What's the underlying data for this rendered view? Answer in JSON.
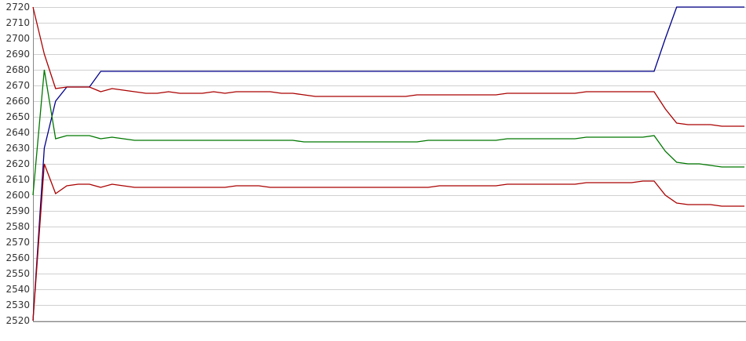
{
  "chart_data": {
    "type": "line",
    "categories": [
      null,
      null,
      null,
      null,
      null,
      null,
      null,
      null,
      null,
      null,
      null,
      null,
      null,
      null,
      null,
      null,
      null,
      null,
      null,
      null,
      null,
      null,
      null,
      null,
      null,
      null,
      null,
      null,
      null,
      null,
      null,
      null,
      null,
      null,
      null,
      null,
      null,
      null,
      null,
      null,
      null,
      null,
      null,
      null,
      null,
      null,
      null,
      null,
      null,
      null,
      null,
      null,
      null,
      null,
      null,
      null,
      null,
      null,
      null,
      null,
      null,
      null,
      null,
      null
    ],
    "ylim": [
      2520,
      2720
    ],
    "yticks": [
      2520,
      2530,
      2540,
      2550,
      2560,
      2570,
      2580,
      2590,
      2600,
      2610,
      2620,
      2630,
      2640,
      2650,
      2660,
      2670,
      2680,
      2690,
      2700,
      2710,
      2720
    ],
    "grid": true,
    "series": [
      {
        "color": "#00008b",
        "values": [
          2520,
          2630,
          2660,
          2669,
          2669,
          2669,
          2679,
          2679,
          2679,
          2679,
          2679,
          2679,
          2679,
          2679,
          2679,
          2679,
          2679,
          2679,
          2679,
          2679,
          2679,
          2679,
          2679,
          2679,
          2679,
          2679,
          2679,
          2679,
          2679,
          2679,
          2679,
          2679,
          2679,
          2679,
          2679,
          2679,
          2679,
          2679,
          2679,
          2679,
          2679,
          2679,
          2679,
          2679,
          2679,
          2679,
          2679,
          2679,
          2679,
          2679,
          2679,
          2679,
          2679,
          2679,
          2679,
          2679,
          2700,
          2720,
          2720,
          2720,
          2720,
          2720,
          2720,
          2720
        ]
      },
      {
        "color": "#aa0000",
        "values": [
          2720,
          2690,
          2668,
          2669,
          2669,
          2669,
          2666,
          2668,
          2667,
          2666,
          2665,
          2665,
          2666,
          2665,
          2665,
          2665,
          2666,
          2665,
          2666,
          2666,
          2666,
          2666,
          2665,
          2665,
          2664,
          2663,
          2663,
          2663,
          2663,
          2663,
          2663,
          2663,
          2663,
          2663,
          2664,
          2664,
          2664,
          2664,
          2664,
          2664,
          2664,
          2664,
          2665,
          2665,
          2665,
          2665,
          2665,
          2665,
          2665,
          2666,
          2666,
          2666,
          2666,
          2666,
          2666,
          2666,
          2655,
          2646,
          2645,
          2645,
          2645,
          2644,
          2644,
          2644
        ]
      },
      {
        "color": "#007700",
        "values": [
          2600,
          2680,
          2636,
          2638,
          2638,
          2638,
          2636,
          2637,
          2636,
          2635,
          2635,
          2635,
          2635,
          2635,
          2635,
          2635,
          2635,
          2635,
          2635,
          2635,
          2635,
          2635,
          2635,
          2635,
          2634,
          2634,
          2634,
          2634,
          2634,
          2634,
          2634,
          2634,
          2634,
          2634,
          2634,
          2635,
          2635,
          2635,
          2635,
          2635,
          2635,
          2635,
          2636,
          2636,
          2636,
          2636,
          2636,
          2636,
          2636,
          2637,
          2637,
          2637,
          2637,
          2637,
          2637,
          2638,
          2628,
          2621,
          2620,
          2620,
          2619,
          2618,
          2618,
          2618
        ]
      },
      {
        "color": "#aa0000",
        "values": [
          2520,
          2620,
          2601,
          2606,
          2607,
          2607,
          2605,
          2607,
          2606,
          2605,
          2605,
          2605,
          2605,
          2605,
          2605,
          2605,
          2605,
          2605,
          2606,
          2606,
          2606,
          2605,
          2605,
          2605,
          2605,
          2605,
          2605,
          2605,
          2605,
          2605,
          2605,
          2605,
          2605,
          2605,
          2605,
          2605,
          2606,
          2606,
          2606,
          2606,
          2606,
          2606,
          2607,
          2607,
          2607,
          2607,
          2607,
          2607,
          2607,
          2608,
          2608,
          2608,
          2608,
          2608,
          2609,
          2609,
          2600,
          2595,
          2594,
          2594,
          2594,
          2593,
          2593,
          2593
        ]
      }
    ]
  }
}
